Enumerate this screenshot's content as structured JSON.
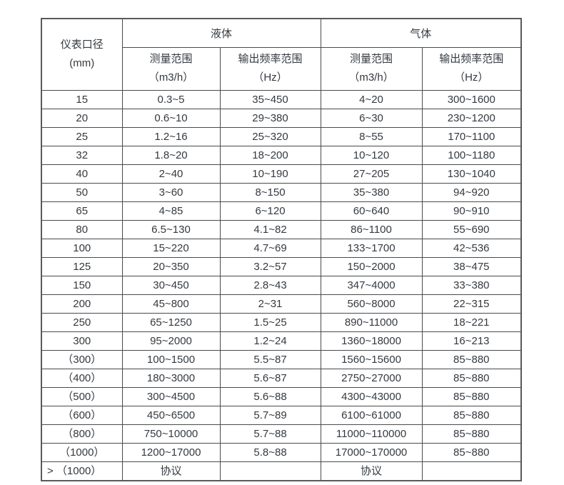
{
  "table": {
    "header": {
      "diameter_label": "仪表口径",
      "diameter_unit": "(mm)",
      "liquid_label": "液体",
      "gas_label": "气体",
      "measure_label": "测量范围",
      "measure_unit": "（m3/h）",
      "freq_label": "输出频率范围",
      "freq_unit": "（Hz）"
    },
    "rows": [
      [
        "15",
        "0.3~5",
        "35~450",
        "4~20",
        "300~1600"
      ],
      [
        "20",
        "0.6~10",
        "29~380",
        "6~30",
        "230~1200"
      ],
      [
        "25",
        "1.2~16",
        "25~320",
        "8~55",
        "170~1100"
      ],
      [
        "32",
        "1.8~20",
        "18~200",
        "10~120",
        "100~1180"
      ],
      [
        "40",
        "2~40",
        "10~190",
        "27~205",
        "130~1040"
      ],
      [
        "50",
        "3~60",
        "8~150",
        "35~380",
        "94~920"
      ],
      [
        "65",
        "4~85",
        "6~120",
        "60~640",
        "90~910"
      ],
      [
        "80",
        "6.5~130",
        "4.1~82",
        "86~1100",
        "55~690"
      ],
      [
        "100",
        "15~220",
        "4.7~69",
        "133~1700",
        "42~536"
      ],
      [
        "125",
        "20~350",
        "3.2~57",
        "150~2000",
        "38~475"
      ],
      [
        "150",
        "30~450",
        "2.8~43",
        "347~4000",
        "33~380"
      ],
      [
        "200",
        "45~800",
        "2~31",
        "560~8000",
        "22~315"
      ],
      [
        "250",
        "65~1250",
        "1.5~25",
        "890~11000",
        "18~221"
      ],
      [
        "300",
        "95~2000",
        "1.2~24",
        "1360~18000",
        "16~213"
      ],
      [
        "（300）",
        "100~1500",
        "5.5~87",
        "1560~15600",
        "85~880"
      ],
      [
        "（400）",
        "180~3000",
        "5.6~87",
        "2750~27000",
        "85~880"
      ],
      [
        "（500）",
        "300~4500",
        "5.6~88",
        "4300~43000",
        "85~880"
      ],
      [
        "（600）",
        "450~6500",
        "5.7~89",
        "6100~61000",
        "85~880"
      ],
      [
        "（800）",
        "750~10000",
        "5.7~88",
        "11000~110000",
        "85~880"
      ],
      [
        "（1000）",
        "1200~17000",
        "5.8~88",
        "17000~170000",
        "85~880"
      ],
      [
        "> （1000）",
        "协议",
        "",
        "协议",
        ""
      ]
    ]
  }
}
